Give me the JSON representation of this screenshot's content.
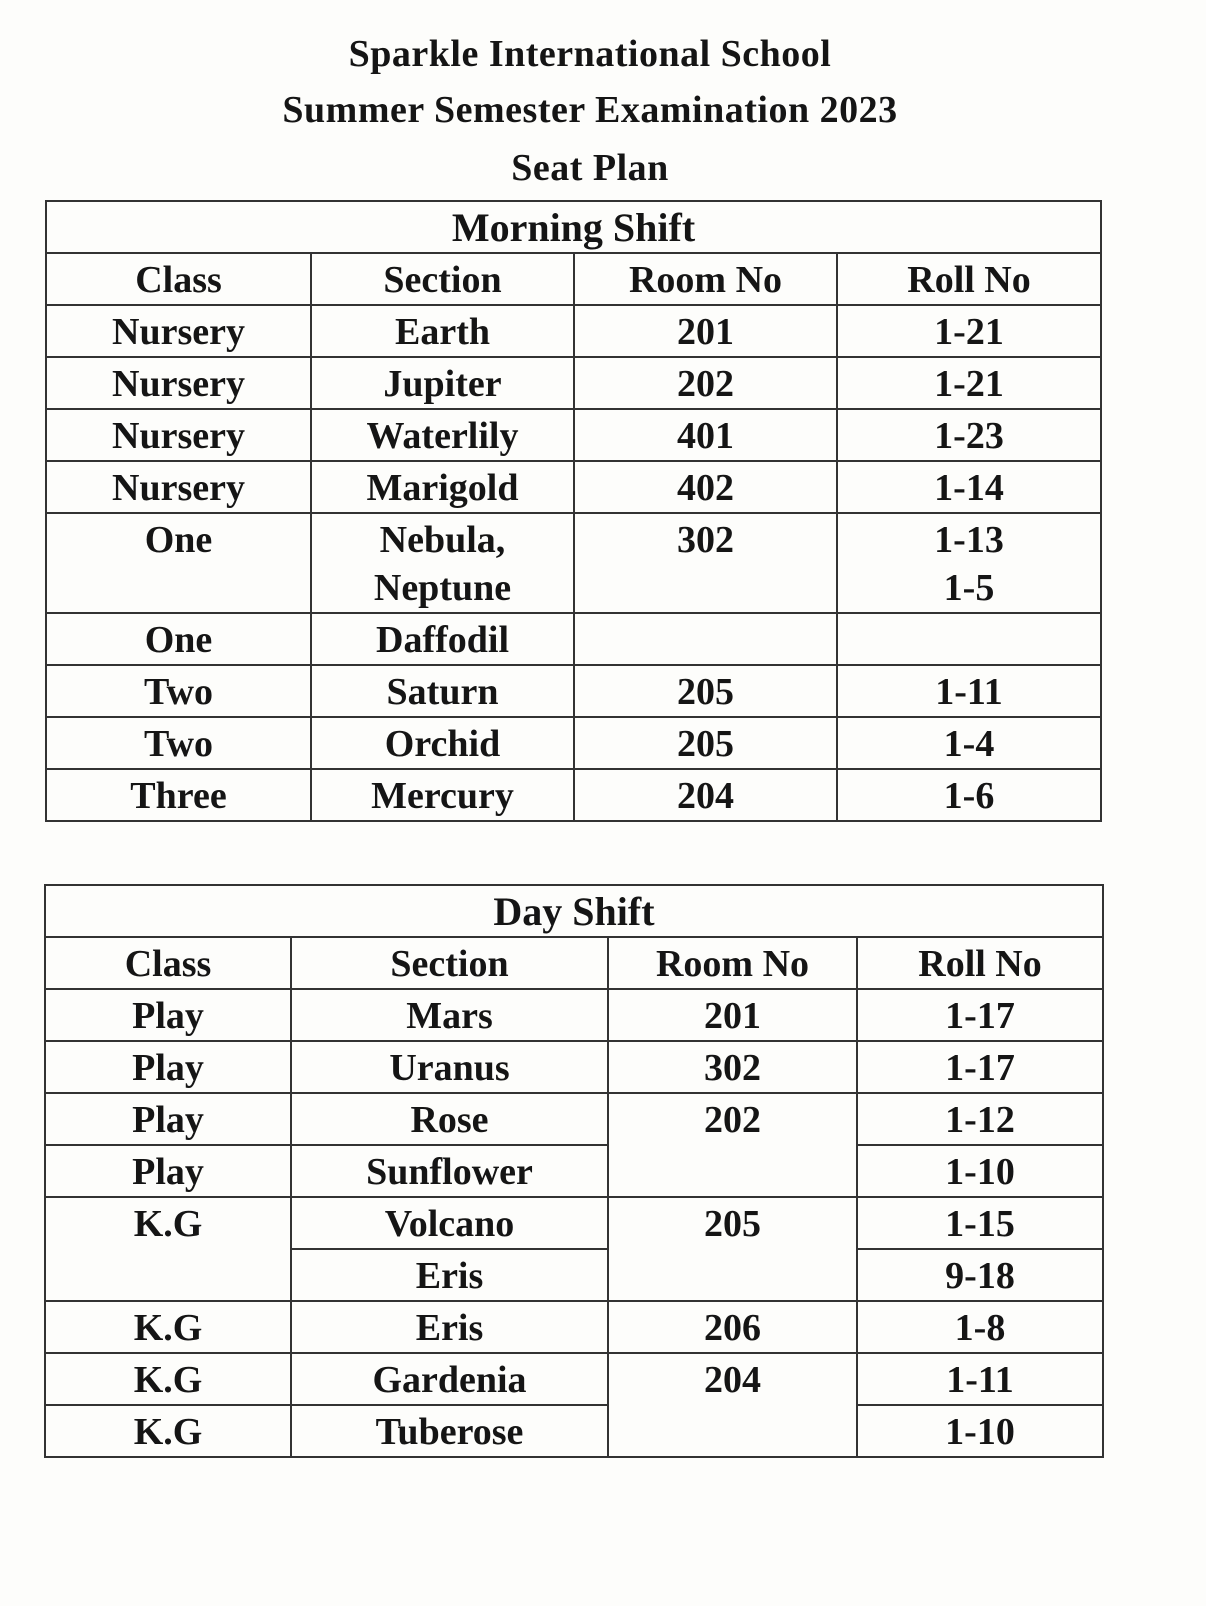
{
  "header": {
    "school": "Sparkle International School",
    "exam": "Summer Semester Examination 2023",
    "doc": "Seat Plan"
  },
  "morning": {
    "title": "Morning Shift",
    "columns": [
      "Class",
      "Section",
      "Room No",
      "Roll No"
    ],
    "rows": [
      {
        "class": "Nursery",
        "section": "Earth",
        "room": "201",
        "roll": "1-21"
      },
      {
        "class": "Nursery",
        "section": "Jupiter",
        "room": "202",
        "roll": "1-21"
      },
      {
        "class": "Nursery",
        "section": "Waterlily",
        "room": "401",
        "roll": "1-23"
      },
      {
        "class": "Nursery",
        "section": "Marigold",
        "room": "402",
        "roll": "1-14"
      },
      {
        "class": "One",
        "section": "Nebula,\nNeptune",
        "room": "302",
        "roll": "1-13\n1-5"
      },
      {
        "class": "One",
        "section": "Daffodil",
        "room": "",
        "roll": ""
      },
      {
        "class": "Two",
        "section": "Saturn",
        "room": "205",
        "roll": "1-11"
      },
      {
        "class": "Two",
        "section": "Orchid",
        "room": "205",
        "roll": "1-4"
      },
      {
        "class": "Three",
        "section": "Mercury",
        "room": "204",
        "roll": "1-6"
      }
    ]
  },
  "day": {
    "title": "Day Shift",
    "columns": [
      "Class",
      "Section",
      "Room No",
      "Roll No"
    ],
    "rows": [
      {
        "class": "Play",
        "section": "Mars",
        "room": "201",
        "roll": "1-17"
      },
      {
        "class": "Play",
        "section": "Uranus",
        "room": "302",
        "roll": "1-17"
      },
      {
        "class": "Play",
        "section": "Rose",
        "room": "202",
        "room_span": 2,
        "roll": "1-12"
      },
      {
        "class": "Play",
        "section": "Sunflower",
        "roll": "1-10"
      },
      {
        "class": "K.G",
        "class_span": 2,
        "section": "Volcano",
        "room": "205",
        "room_span": 2,
        "roll": "1-15"
      },
      {
        "section": "Eris",
        "roll": "9-18"
      },
      {
        "class": "K.G",
        "section": "Eris",
        "room": "206",
        "roll": "1-8"
      },
      {
        "class": "K.G",
        "section": "Gardenia",
        "room": "204",
        "room_span": 2,
        "roll": "1-11"
      },
      {
        "class": "K.G",
        "section": "Tuberose",
        "roll": "1-10"
      }
    ]
  }
}
